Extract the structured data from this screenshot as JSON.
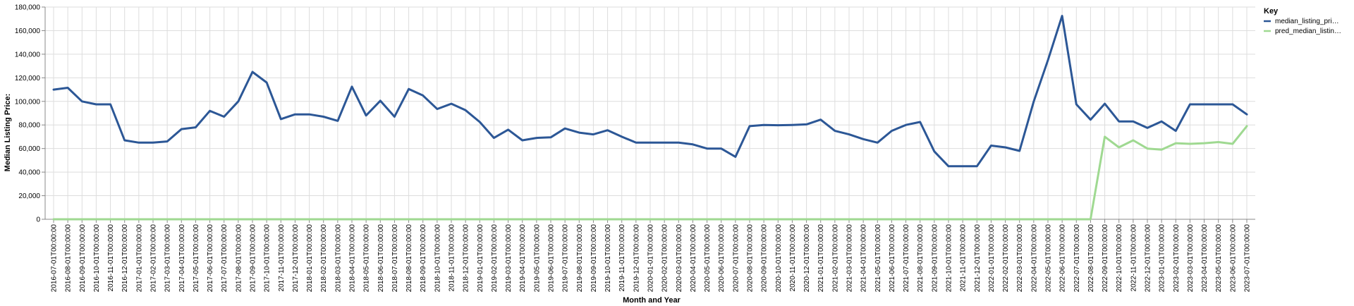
{
  "chart_data": {
    "type": "line",
    "xlabel": "Month and Year",
    "ylabel": "Median Listing Price:",
    "ylim": [
      0,
      180000
    ],
    "yticks": [
      "0",
      "20,000",
      "40,000",
      "60,000",
      "80,000",
      "100,000",
      "120,000",
      "140,000",
      "160,000",
      "180,000"
    ],
    "grid": true,
    "legend": {
      "title": "Key",
      "position": "right"
    },
    "x": [
      "2016-07-01T00:00:00",
      "2016-08-01T00:00:00",
      "2016-09-01T00:00:00",
      "2016-10-01T00:00:00",
      "2016-11-01T00:00:00",
      "2016-12-01T00:00:00",
      "2017-01-01T00:00:00",
      "2017-02-01T00:00:00",
      "2017-03-01T00:00:00",
      "2017-04-01T00:00:00",
      "2017-05-01T00:00:00",
      "2017-06-01T00:00:00",
      "2017-07-01T00:00:00",
      "2017-08-01T00:00:00",
      "2017-09-01T00:00:00",
      "2017-10-01T00:00:00",
      "2017-11-01T00:00:00",
      "2017-12-01T00:00:00",
      "2018-01-01T00:00:00",
      "2018-02-01T00:00:00",
      "2018-03-01T00:00:00",
      "2018-04-01T00:00:00",
      "2018-05-01T00:00:00",
      "2018-06-01T00:00:00",
      "2018-07-01T00:00:00",
      "2018-08-01T00:00:00",
      "2018-09-01T00:00:00",
      "2018-10-01T00:00:00",
      "2018-11-01T00:00:00",
      "2018-12-01T00:00:00",
      "2019-01-01T00:00:00",
      "2019-02-01T00:00:00",
      "2019-03-01T00:00:00",
      "2019-04-01T00:00:00",
      "2019-05-01T00:00:00",
      "2019-06-01T00:00:00",
      "2019-07-01T00:00:00",
      "2019-08-01T00:00:00",
      "2019-09-01T00:00:00",
      "2019-10-01T00:00:00",
      "2019-11-01T00:00:00",
      "2019-12-01T00:00:00",
      "2020-01-01T00:00:00",
      "2020-02-01T00:00:00",
      "2020-03-01T00:00:00",
      "2020-04-01T00:00:00",
      "2020-05-01T00:00:00",
      "2020-06-01T00:00:00",
      "2020-07-01T00:00:00",
      "2020-08-01T00:00:00",
      "2020-09-01T00:00:00",
      "2020-10-01T00:00:00",
      "2020-11-01T00:00:00",
      "2020-12-01T00:00:00",
      "2021-01-01T00:00:00",
      "2021-02-01T00:00:00",
      "2021-03-01T00:00:00",
      "2021-04-01T00:00:00",
      "2021-05-01T00:00:00",
      "2021-06-01T00:00:00",
      "2021-07-01T00:00:00",
      "2021-08-01T00:00:00",
      "2021-09-01T00:00:00",
      "2021-10-01T00:00:00",
      "2021-11-01T00:00:00",
      "2021-12-01T00:00:00",
      "2022-01-01T00:00:00",
      "2022-02-01T00:00:00",
      "2022-03-01T00:00:00",
      "2022-04-01T00:00:00",
      "2022-05-01T00:00:00",
      "2022-06-01T00:00:00",
      "2022-07-01T00:00:00",
      "2022-08-01T00:00:00",
      "2022-09-01T00:00:00",
      "2022-10-01T00:00:00",
      "2022-11-01T00:00:00",
      "2022-12-01T00:00:00",
      "2023-01-01T00:00:00",
      "2023-02-01T00:00:00",
      "2023-03-01T00:00:00",
      "2023-04-01T00:00:00",
      "2023-05-01T00:00:00",
      "2023-06-01T00:00:00",
      "2023-07-01T00:00:00"
    ],
    "series": [
      {
        "name": "median_listing_pri…",
        "color": "#2c5796",
        "values": [
          110000,
          111500,
          100000,
          97500,
          97500,
          67000,
          65000,
          65000,
          66000,
          76500,
          78000,
          92000,
          87000,
          100000,
          125000,
          116000,
          85000,
          89000,
          89000,
          87000,
          83500,
          112500,
          88000,
          100500,
          87000,
          110500,
          105000,
          93500,
          98000,
          92500,
          82500,
          69000,
          76000,
          67000,
          69000,
          69500,
          77000,
          73500,
          72000,
          75500,
          70000,
          65000,
          65000,
          65000,
          65000,
          63500,
          60000,
          60000,
          53000,
          79000,
          80000,
          79800,
          80000,
          80500,
          84500,
          75000,
          72000,
          68000,
          65000,
          75000,
          80000,
          82500,
          57500,
          45000,
          45000,
          45000,
          62500,
          61000,
          58000,
          100000,
          135000,
          172500,
          97500,
          84500,
          98000,
          83000,
          83000,
          77500,
          83000,
          75000,
          97500,
          97500,
          97500,
          97500,
          89000
        ]
      },
      {
        "name": "pred_median_listin…",
        "color": "#9fd991",
        "values": [
          0,
          0,
          0,
          0,
          0,
          0,
          0,
          0,
          0,
          0,
          0,
          0,
          0,
          0,
          0,
          0,
          0,
          0,
          0,
          0,
          0,
          0,
          0,
          0,
          0,
          0,
          0,
          0,
          0,
          0,
          0,
          0,
          0,
          0,
          0,
          0,
          0,
          0,
          0,
          0,
          0,
          0,
          0,
          0,
          0,
          0,
          0,
          0,
          0,
          0,
          0,
          0,
          0,
          0,
          0,
          0,
          0,
          0,
          0,
          0,
          0,
          0,
          0,
          0,
          0,
          0,
          0,
          0,
          0,
          0,
          0,
          0,
          0,
          0,
          70000,
          61000,
          67000,
          60000,
          59000,
          64500,
          64000,
          64500,
          65500,
          64000,
          79000
        ]
      }
    ]
  }
}
